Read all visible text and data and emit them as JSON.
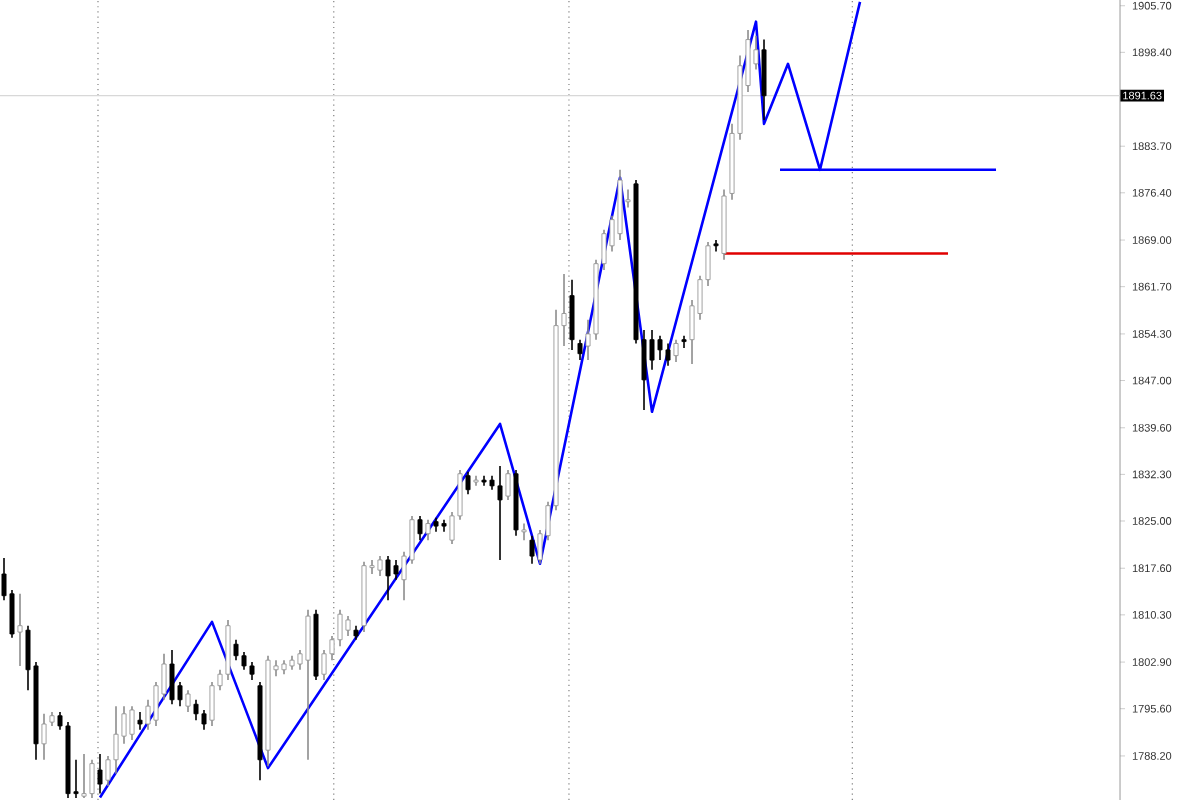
{
  "chart_data": {
    "type": "candlestick",
    "categories": [
      null,
      null,
      null,
      null,
      null,
      null,
      null,
      null,
      null,
      null,
      null,
      null,
      null,
      null,
      null,
      null,
      null,
      null,
      null,
      null,
      null,
      null,
      null,
      null,
      null,
      null,
      null,
      null,
      null,
      null,
      null,
      null,
      null,
      null,
      null,
      null,
      null,
      null,
      null,
      null,
      null,
      null,
      null,
      null,
      null,
      null,
      null,
      null,
      null,
      null,
      null,
      null,
      null,
      null,
      null,
      null,
      null,
      null,
      null,
      null,
      null,
      null,
      null,
      null,
      null,
      null,
      null,
      null,
      null,
      null,
      null,
      null,
      null,
      null,
      null,
      null,
      null,
      null,
      null,
      null,
      null,
      null,
      null,
      null,
      null,
      null,
      null,
      null,
      null,
      null,
      null,
      null,
      null,
      null,
      null,
      null,
      null,
      null,
      null,
      null,
      null,
      null,
      null,
      null,
      null,
      null,
      null,
      null,
      null,
      null,
      null,
      null,
      null,
      null,
      null,
      null,
      null,
      null,
      null,
      null,
      null,
      null,
      null,
      null,
      null,
      null,
      null,
      null,
      null,
      null,
      null,
      null,
      null,
      null,
      null,
      null,
      null,
      null,
      null,
      null
    ],
    "ohlc": [
      [
        1816.7,
        1819.2,
        1812.6,
        1813.3
      ],
      [
        1813.6,
        1814.2,
        1806.7,
        1807.3
      ],
      [
        1807.6,
        1813.6,
        1802.3,
        1808.6
      ],
      [
        1807.9,
        1808.6,
        1798.5,
        1801.7
      ],
      [
        1802.3,
        1802.9,
        1787.6,
        1790.1
      ],
      [
        1790.1,
        1794.8,
        1787.6,
        1793.2
      ],
      [
        1793.5,
        1795.1,
        1792.9,
        1794.5
      ],
      [
        1794.5,
        1795.1,
        1792.3,
        1792.9
      ],
      [
        1792.9,
        1793.5,
        1781.6,
        1782.3
      ],
      [
        1782.6,
        1787.6,
        1781.6,
        1782.3
      ],
      [
        1781.9,
        1788.5,
        1781.6,
        1782.3
      ],
      [
        1782.3,
        1787.6,
        1781.6,
        1787.0
      ],
      [
        1786.0,
        1788.5,
        1782.3,
        1783.8
      ],
      [
        1784.4,
        1788.2,
        1783.5,
        1787.6
      ],
      [
        1787.6,
        1796.0,
        1785.4,
        1791.6
      ],
      [
        1791.3,
        1796.0,
        1790.1,
        1794.8
      ],
      [
        1791.6,
        1796.0,
        1790.7,
        1795.4
      ],
      [
        1793.8,
        1795.1,
        1792.3,
        1793.2
      ],
      [
        1793.2,
        1797.0,
        1792.3,
        1796.0
      ],
      [
        1793.8,
        1799.8,
        1792.9,
        1799.2
      ],
      [
        1797.9,
        1804.2,
        1797.0,
        1802.6
      ],
      [
        1802.6,
        1804.8,
        1796.3,
        1797.0
      ],
      [
        1799.2,
        1799.8,
        1796.0,
        1797.0
      ],
      [
        1796.0,
        1798.5,
        1795.1,
        1797.9
      ],
      [
        1796.3,
        1797.0,
        1793.8,
        1794.8
      ],
      [
        1794.8,
        1795.4,
        1792.3,
        1793.2
      ],
      [
        1793.8,
        1799.8,
        1792.9,
        1799.2
      ],
      [
        1799.2,
        1801.7,
        1798.5,
        1801.0
      ],
      [
        1801.0,
        1809.5,
        1800.1,
        1808.6
      ],
      [
        1805.7,
        1806.4,
        1803.2,
        1803.9
      ],
      [
        1803.9,
        1804.5,
        1801.7,
        1802.3
      ],
      [
        1802.3,
        1802.9,
        1800.1,
        1801.0
      ],
      [
        1799.2,
        1799.8,
        1784.4,
        1787.6
      ],
      [
        1789.1,
        1803.9,
        1786.6,
        1803.2
      ],
      [
        1801.7,
        1803.2,
        1800.7,
        1802.3
      ],
      [
        1801.7,
        1803.2,
        1801.0,
        1802.6
      ],
      [
        1802.3,
        1803.9,
        1801.7,
        1803.2
      ],
      [
        1802.6,
        1804.8,
        1801.7,
        1804.2
      ],
      [
        1803.2,
        1811.1,
        1787.6,
        1810.1
      ],
      [
        1810.4,
        1811.1,
        1800.1,
        1800.7
      ],
      [
        1801.0,
        1804.8,
        1800.1,
        1804.2
      ],
      [
        1804.2,
        1807.0,
        1803.2,
        1806.4
      ],
      [
        1806.4,
        1811.1,
        1805.4,
        1810.4
      ],
      [
        1807.9,
        1810.1,
        1807.0,
        1809.5
      ],
      [
        1807.9,
        1808.6,
        1806.4,
        1807.0
      ],
      [
        1808.6,
        1818.6,
        1807.6,
        1818.0
      ],
      [
        1817.7,
        1818.9,
        1816.7,
        1818.0
      ],
      [
        1817.3,
        1819.5,
        1816.4,
        1818.9
      ],
      [
        1818.9,
        1819.5,
        1812.6,
        1816.4
      ],
      [
        1818.0,
        1818.9,
        1815.8,
        1816.7
      ],
      [
        1815.8,
        1820.2,
        1812.6,
        1819.5
      ],
      [
        1818.9,
        1825.8,
        1818.3,
        1825.2
      ],
      [
        1825.2,
        1825.8,
        1822.0,
        1823.0
      ],
      [
        1823.0,
        1825.2,
        1822.0,
        1824.6
      ],
      [
        1824.9,
        1825.5,
        1823.3,
        1824.2
      ],
      [
        1824.6,
        1825.2,
        1823.3,
        1824.2
      ],
      [
        1822.0,
        1826.4,
        1821.4,
        1825.8
      ],
      [
        1825.8,
        1833.0,
        1825.2,
        1832.4
      ],
      [
        1832.1,
        1832.7,
        1829.2,
        1829.9
      ],
      [
        1831.1,
        1832.1,
        1830.5,
        1831.4
      ],
      [
        1831.4,
        1832.1,
        1830.5,
        1831.1
      ],
      [
        1831.4,
        1832.1,
        1829.9,
        1830.5
      ],
      [
        1830.5,
        1833.6,
        1818.9,
        1828.3
      ],
      [
        1828.9,
        1833.0,
        1828.3,
        1832.4
      ],
      [
        1832.4,
        1833.0,
        1822.7,
        1823.6
      ],
      [
        1823.3,
        1824.6,
        1822.0,
        1823.6
      ],
      [
        1822.0,
        1822.7,
        1818.3,
        1819.5
      ],
      [
        1818.9,
        1823.6,
        1818.3,
        1823.0
      ],
      [
        1822.7,
        1828.0,
        1822.0,
        1827.4
      ],
      [
        1827.4,
        1858.1,
        1826.7,
        1855.6
      ],
      [
        1855.6,
        1863.7,
        1852.4,
        1857.5
      ],
      [
        1860.3,
        1862.8,
        1851.8,
        1853.4
      ],
      [
        1852.8,
        1853.4,
        1850.2,
        1851.2
      ],
      [
        1852.4,
        1856.5,
        1850.2,
        1854.3
      ],
      [
        1854.3,
        1865.9,
        1853.4,
        1865.3
      ],
      [
        1865.3,
        1870.6,
        1864.3,
        1870.0
      ],
      [
        1868.1,
        1872.8,
        1867.2,
        1872.2
      ],
      [
        1870.0,
        1880.0,
        1869.0,
        1878.4
      ],
      [
        1875.0,
        1876.9,
        1874.1,
        1875.3
      ],
      [
        1877.8,
        1878.4,
        1852.8,
        1853.4
      ],
      [
        1853.4,
        1854.9,
        1842.4,
        1847.1
      ],
      [
        1853.4,
        1854.9,
        1848.7,
        1850.2
      ],
      [
        1853.4,
        1854.0,
        1850.2,
        1851.8
      ],
      [
        1851.8,
        1852.8,
        1849.3,
        1850.2
      ],
      [
        1850.9,
        1853.4,
        1849.9,
        1852.8
      ],
      [
        1853.4,
        1854.0,
        1852.1,
        1853.1
      ],
      [
        1853.4,
        1859.6,
        1849.6,
        1858.7
      ],
      [
        1857.5,
        1863.4,
        1856.5,
        1862.8
      ],
      [
        1862.8,
        1868.7,
        1861.8,
        1868.1
      ],
      [
        1868.4,
        1869.0,
        1867.2,
        1868.1
      ],
      [
        1866.9,
        1876.9,
        1865.9,
        1875.9
      ],
      [
        1876.3,
        1887.2,
        1875.3,
        1885.7
      ],
      [
        1885.7,
        1897.9,
        1884.7,
        1896.3
      ],
      [
        1893.2,
        1901.9,
        1892.2,
        1900.4
      ],
      [
        1896.6,
        1901.0,
        1895.7,
        1898.8
      ],
      [
        1898.8,
        1900.4,
        1887.8,
        1891.6
      ],
      null,
      null,
      null,
      null,
      null,
      null,
      null,
      null,
      null,
      null,
      null,
      null,
      null,
      null,
      null,
      null,
      null,
      null,
      null,
      null,
      null,
      null,
      null,
      null,
      null,
      null,
      null,
      null,
      null,
      null,
      null,
      null,
      null,
      null,
      null,
      null,
      null,
      null,
      null,
      null,
      null,
      null,
      null,
      null
    ],
    "series": [
      {
        "type": "line",
        "color": "#0000ff",
        "values": [
          null,
          null,
          null,
          null,
          null,
          null,
          null,
          null,
          null,
          null,
          null,
          null,
          1781.7,
          null,
          null,
          null,
          null,
          null,
          null,
          null,
          null,
          null,
          null,
          null,
          null,
          null,
          1809.2,
          null,
          null,
          null,
          null,
          null,
          null,
          1786.3,
          null,
          null,
          null,
          null,
          null,
          null,
          null,
          null,
          null,
          null,
          null,
          null,
          null,
          null,
          null,
          null,
          null,
          null,
          null,
          null,
          null,
          null,
          null,
          null,
          null,
          null,
          null,
          null,
          1840.2,
          null,
          null,
          null,
          null,
          1818.3,
          null,
          null,
          null,
          null,
          null,
          null,
          null,
          null,
          null,
          1878.8,
          null,
          null,
          null,
          1842.1,
          null,
          null,
          null,
          null,
          null,
          null,
          null,
          null,
          null,
          null,
          null,
          null,
          1903.2,
          1887.2,
          null,
          null,
          1896.6,
          null,
          null,
          null,
          1880.0,
          null,
          null,
          null,
          null,
          1906.3,
          null,
          null,
          null,
          null,
          null,
          null,
          null,
          null,
          null,
          null,
          null,
          null,
          null,
          null,
          null,
          null,
          null,
          null,
          null,
          null,
          null,
          null,
          null,
          null,
          null,
          null,
          null,
          null,
          null,
          null,
          null,
          null
        ]
      },
      {
        "type": "line",
        "color": "#0000ff",
        "values": [
          null,
          null,
          null,
          null,
          null,
          null,
          null,
          null,
          null,
          null,
          null,
          null,
          null,
          null,
          null,
          null,
          null,
          null,
          null,
          null,
          null,
          null,
          null,
          null,
          null,
          null,
          null,
          null,
          null,
          null,
          null,
          null,
          null,
          null,
          null,
          null,
          null,
          null,
          null,
          null,
          null,
          null,
          null,
          null,
          null,
          null,
          null,
          null,
          null,
          null,
          null,
          null,
          null,
          null,
          null,
          null,
          null,
          null,
          null,
          null,
          null,
          null,
          null,
          null,
          null,
          null,
          null,
          null,
          null,
          null,
          null,
          null,
          null,
          null,
          null,
          null,
          null,
          null,
          null,
          null,
          null,
          null,
          null,
          null,
          null,
          null,
          null,
          null,
          null,
          null,
          null,
          null,
          null,
          null,
          null,
          null,
          null,
          1880.0,
          null,
          null,
          null,
          null,
          null,
          null,
          null,
          null,
          null,
          null,
          null,
          null,
          null,
          null,
          null,
          null,
          null,
          null,
          null,
          null,
          null,
          null,
          null,
          null,
          null,
          null,
          1880.0,
          null,
          null,
          null,
          null,
          null,
          null,
          null,
          null,
          null,
          null,
          null,
          null,
          null,
          null,
          null
        ]
      },
      {
        "type": "line",
        "color": "#e00000",
        "values": [
          null,
          null,
          null,
          null,
          null,
          null,
          null,
          null,
          null,
          null,
          null,
          null,
          null,
          null,
          null,
          null,
          null,
          null,
          null,
          null,
          null,
          null,
          null,
          null,
          null,
          null,
          null,
          null,
          null,
          null,
          null,
          null,
          null,
          null,
          null,
          null,
          null,
          null,
          null,
          null,
          null,
          null,
          null,
          null,
          null,
          null,
          null,
          null,
          null,
          null,
          null,
          null,
          null,
          null,
          null,
          null,
          null,
          null,
          null,
          null,
          null,
          null,
          null,
          null,
          null,
          null,
          null,
          null,
          null,
          null,
          null,
          null,
          null,
          null,
          null,
          null,
          null,
          null,
          null,
          null,
          null,
          null,
          null,
          null,
          null,
          null,
          null,
          null,
          null,
          null,
          1866.9,
          null,
          null,
          null,
          null,
          null,
          null,
          null,
          null,
          null,
          null,
          null,
          null,
          null,
          null,
          null,
          null,
          null,
          null,
          null,
          null,
          null,
          null,
          null,
          null,
          null,
          null,
          null,
          1866.9,
          null,
          null,
          null,
          null,
          null,
          null,
          null,
          null,
          null,
          null,
          null,
          null,
          null,
          null,
          null,
          null,
          null,
          null,
          null,
          null,
          null
        ]
      }
    ],
    "ylim": [
      1781.3,
      1906.6
    ],
    "yticks": [
      {
        "value": 1905.7,
        "label": "1905.70"
      },
      {
        "value": 1898.4,
        "label": "1898.40"
      },
      {
        "value": 1883.7,
        "label": "1883.70"
      },
      {
        "value": 1876.4,
        "label": "1876.40"
      },
      {
        "value": 1869.0,
        "label": "1869.00"
      },
      {
        "value": 1861.7,
        "label": "1861.70"
      },
      {
        "value": 1854.3,
        "label": "1854.30"
      },
      {
        "value": 1847.0,
        "label": "1847.00"
      },
      {
        "value": 1839.6,
        "label": "1839.60"
      },
      {
        "value": 1832.3,
        "label": "1832.30"
      },
      {
        "value": 1825.0,
        "label": "1825.00"
      },
      {
        "value": 1817.6,
        "label": "1817.60"
      },
      {
        "value": 1810.3,
        "label": "1810.30"
      },
      {
        "value": 1802.9,
        "label": "1802.90"
      },
      {
        "value": 1795.6,
        "label": "1795.60"
      },
      {
        "value": 1788.2,
        "label": "1788.20"
      }
    ],
    "tick_labels": "y",
    "ref_lines": [
      {
        "axis": "y",
        "value": 1891.63,
        "label": "1891.63",
        "color": "#d8d8d8",
        "line_style": "solid"
      }
    ]
  }
}
